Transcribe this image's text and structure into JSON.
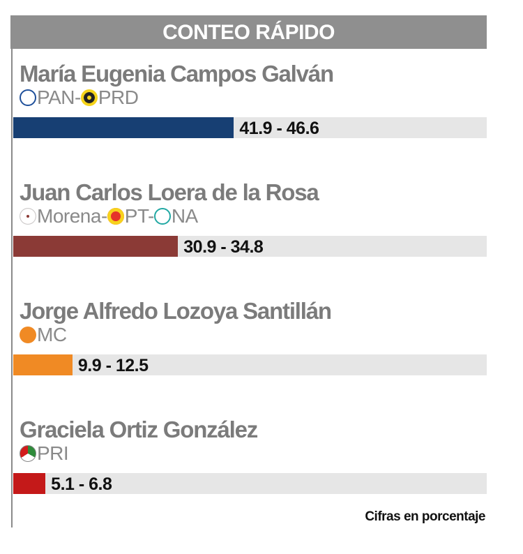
{
  "title": "CONTEO RÁPIDO",
  "note": "Cifras en porcentaje",
  "chart_data": {
    "type": "bar",
    "title": "CONTEO RÁPIDO",
    "xlim": [
      0,
      100
    ],
    "categories": [
      "María Eugenia Campos Galván",
      "Juan Carlos Loera de la Rosa",
      "Jorge Alfredo Lozoya Santillán",
      "Graciela Ortiz González"
    ],
    "ranges": [
      [
        41.9,
        46.6
      ],
      [
        30.9,
        34.8
      ],
      [
        9.9,
        12.5
      ],
      [
        5.1,
        6.8
      ]
    ],
    "labels": [
      "41.9 - 46.6",
      "30.9 - 34.8",
      "9.9 - 12.5",
      "5.1 - 6.8"
    ],
    "colors": [
      "#173f73",
      "#8b3a36",
      "#f08a24",
      "#c41919"
    ]
  },
  "candidates": [
    {
      "name": "María Eugenia Campos Galván",
      "parties": [
        {
          "icon": "pan-logo-icon",
          "label": "PAN-"
        },
        {
          "icon": "prd-logo-icon",
          "label": "PRD"
        }
      ]
    },
    {
      "name": "Juan Carlos Loera de la Rosa",
      "parties": [
        {
          "icon": "morena-logo-icon",
          "label": "Morena-"
        },
        {
          "icon": "pt-logo-icon",
          "label": "PT-"
        },
        {
          "icon": "na-logo-icon",
          "label": "NA"
        }
      ]
    },
    {
      "name": "Jorge Alfredo Lozoya Santillán",
      "parties": [
        {
          "icon": "mc-logo-icon",
          "label": "MC"
        }
      ]
    },
    {
      "name": "Graciela Ortiz González",
      "parties": [
        {
          "icon": "pri-logo-icon",
          "label": "PRI"
        }
      ]
    }
  ]
}
